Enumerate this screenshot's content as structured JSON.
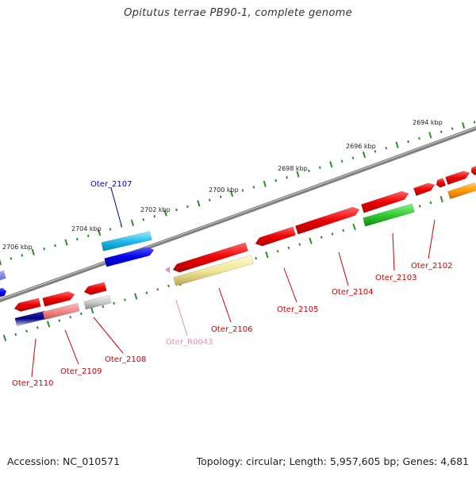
{
  "title": "Opitutus terrae PB90-1, complete genome",
  "footer": {
    "accession": "Accession: NC_010571",
    "summary": "Topology: circular; Length: 5,957,605 bp; Genes: 4,681"
  },
  "colors": {
    "backbone": "#808080",
    "tick": "#2e8b2e",
    "locus_label": "#cc0000",
    "locus_label_blue": "#0000aa",
    "locus_label_pink": "#ee88bb"
  },
  "scale_labels": [
    "2694 kbp",
    "2696 kbp",
    "2698 kbp",
    "2700 kbp",
    "2702 kbp",
    "2704 kbp",
    "2706 kbp"
  ],
  "loci": [
    {
      "id": "Oter_2102",
      "color": "red"
    },
    {
      "id": "Oter_2103",
      "color": "red"
    },
    {
      "id": "Oter_2104",
      "color": "red"
    },
    {
      "id": "Oter_2105",
      "color": "red"
    },
    {
      "id": "Oter_2106",
      "color": "red"
    },
    {
      "id": "Oter_R0043",
      "color": "pink"
    },
    {
      "id": "Oter_2107",
      "color": "blue"
    },
    {
      "id": "Oter_2108",
      "color": "red"
    },
    {
      "id": "Oter_2109",
      "color": "red"
    },
    {
      "id": "Oter_2110",
      "color": "red"
    }
  ]
}
